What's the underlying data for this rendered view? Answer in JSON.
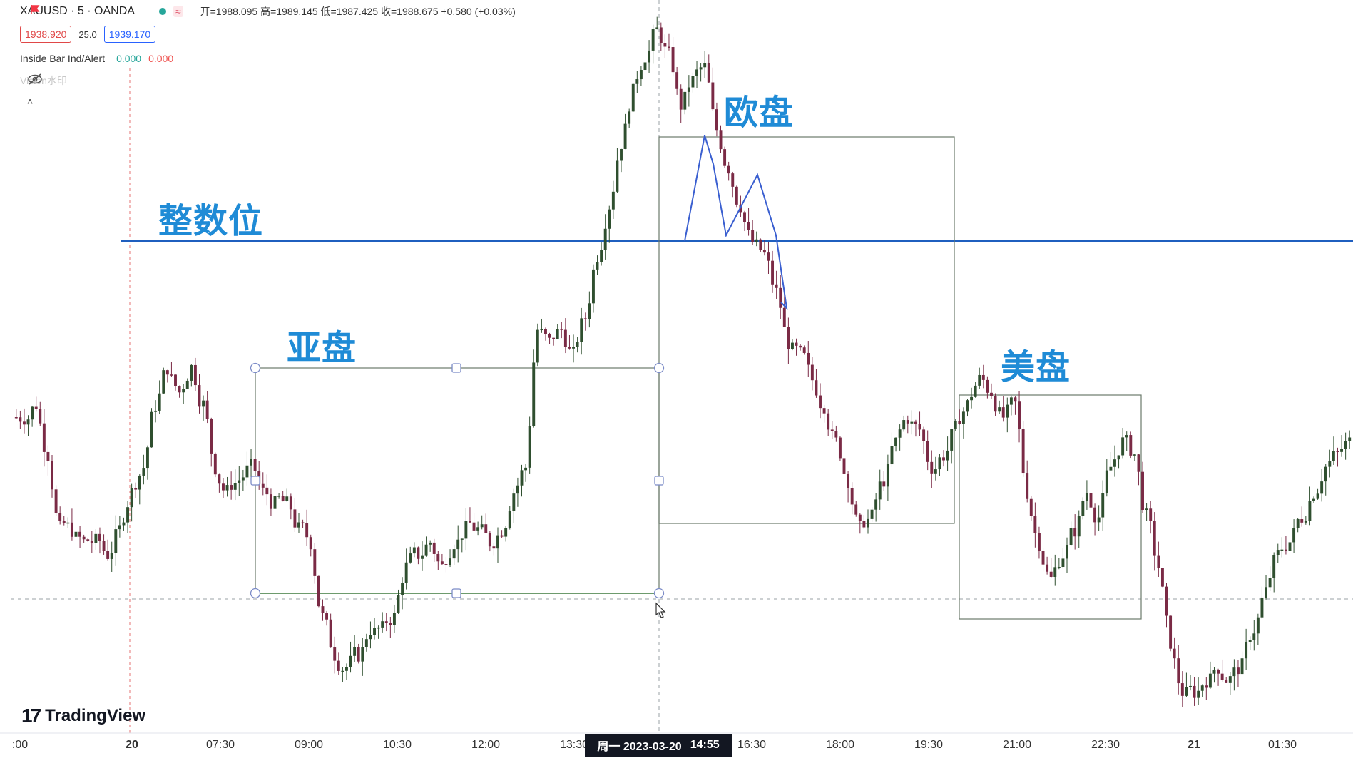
{
  "legend": {
    "symbol": "XAUUSD · 5 · OANDA",
    "ohlc": "开=1988.095 高=1989.145 低=1987.425 收=1988.675 +0.580 (+0.03%)",
    "bid": "1938.920",
    "spread": "25.0",
    "ask": "1939.170",
    "indicator_name": "Inside Bar Ind/Alert",
    "indicator_v1": "0.000",
    "indicator_v2": "0.000",
    "watermark": "Vision水印",
    "wave_icon": "≈",
    "collapse_icon": "˄"
  },
  "annotations": {
    "zhengshu": "整数位",
    "ya": "亚盘",
    "ou": "欧盘",
    "mei": "美盘"
  },
  "x_axis": {
    "ticks": [
      ":00",
      "20",
      "07:30",
      "09:00",
      "10:30",
      "12:00",
      "13:30",
      "16:30",
      "18:00",
      "19:30",
      "21:00",
      "22:30",
      "21",
      "01:30"
    ],
    "crosshair_day": "周一 2023-03-20",
    "crosshair_time": "14:55"
  },
  "brand": {
    "name": "TradingView",
    "mark": "17"
  },
  "colors": {
    "up": "#2e7d32",
    "down": "#7a2a45",
    "candle_body_up": "#2f4f2f",
    "hline": "#1f5fbf",
    "annotation": "#1f8bd6",
    "box": "#6b7a6b",
    "zigzag": "#3a5fd0"
  },
  "chart_data": {
    "type": "candlestick",
    "symbol": "XAUUSD",
    "interval": "5",
    "close_path": [
      1982,
      1983,
      1979,
      1973,
      1973,
      1972,
      1972,
      1971,
      1973,
      1976,
      1978,
      1983,
      1986,
      1984,
      1986,
      1983,
      1978,
      1976,
      1977,
      1978,
      1976,
      1975,
      1975,
      1973,
      1972,
      1966,
      1963,
      1962,
      1963,
      1965,
      1965,
      1966,
      1970,
      1971,
      1972,
      1970,
      1972,
      1973,
      1973,
      1972,
      1973,
      1976,
      1978,
      1989,
      1988,
      1989,
      1987,
      1990,
      1995,
      1999,
      2004,
      2008,
      2011,
      2013,
      2011,
      2007,
      2009,
      2010,
      2005,
      2002,
      1999,
      1996,
      1995,
      1992,
      1988,
      1987,
      1985,
      1983,
      1980,
      1977,
      1973,
      1974,
      1977,
      1980,
      1982,
      1981,
      1978,
      1979,
      1981,
      1983,
      1985,
      1984,
      1982,
      1983,
      1976,
      1972,
      1969,
      1971,
      1973,
      1976,
      1974,
      1978,
      1980,
      1979,
      1974,
      1970,
      1964,
      1960,
      1960,
      1961,
      1962,
      1961,
      1962,
      1965,
      1968,
      1971,
      1972,
      1974,
      1976,
      1978,
      1979,
      1980
    ]
  }
}
